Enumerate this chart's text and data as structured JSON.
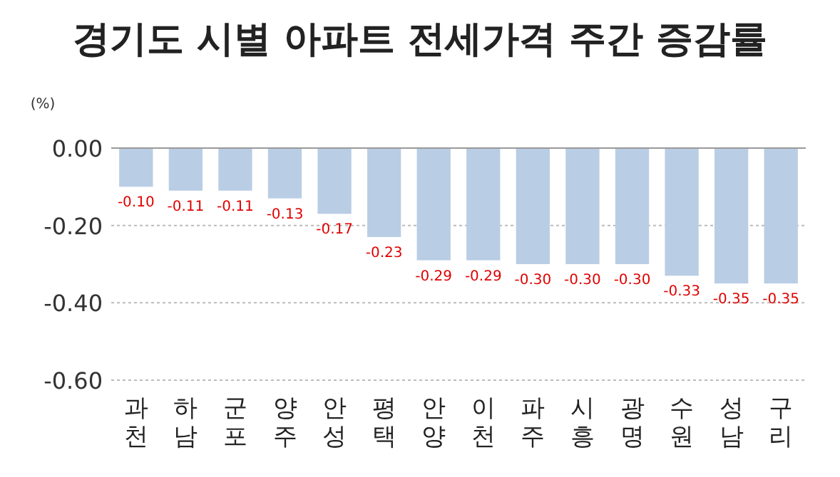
{
  "chart_data": {
    "type": "bar",
    "title": "경기도 시별 아파트 전세가격 주간 증감률",
    "ylabel": "(%)",
    "categories": [
      "과천",
      "하남",
      "군포",
      "양주",
      "안성",
      "평택",
      "안양",
      "이천",
      "파주",
      "시흥",
      "광명",
      "수원",
      "성남",
      "구리"
    ],
    "values": [
      -0.1,
      -0.11,
      -0.11,
      -0.13,
      -0.17,
      -0.23,
      -0.29,
      -0.29,
      -0.3,
      -0.3,
      -0.3,
      -0.33,
      -0.35,
      -0.35
    ],
    "value_labels": [
      "-0.10",
      "-0.11",
      "-0.11",
      "-0.13",
      "-0.17",
      "-0.23",
      "-0.29",
      "-0.29",
      "-0.30",
      "-0.30",
      "-0.30",
      "-0.33",
      "-0.35",
      "-0.35"
    ],
    "color": "#b9cde5",
    "ylim": [
      -0.6,
      0
    ],
    "yticks": [
      {
        "value": 0,
        "label": "0.00"
      },
      {
        "value": -0.2,
        "label": "-0.20"
      },
      {
        "value": -0.4,
        "label": "-0.40"
      },
      {
        "value": -0.6,
        "label": "-0.60"
      }
    ],
    "grid": "y"
  }
}
